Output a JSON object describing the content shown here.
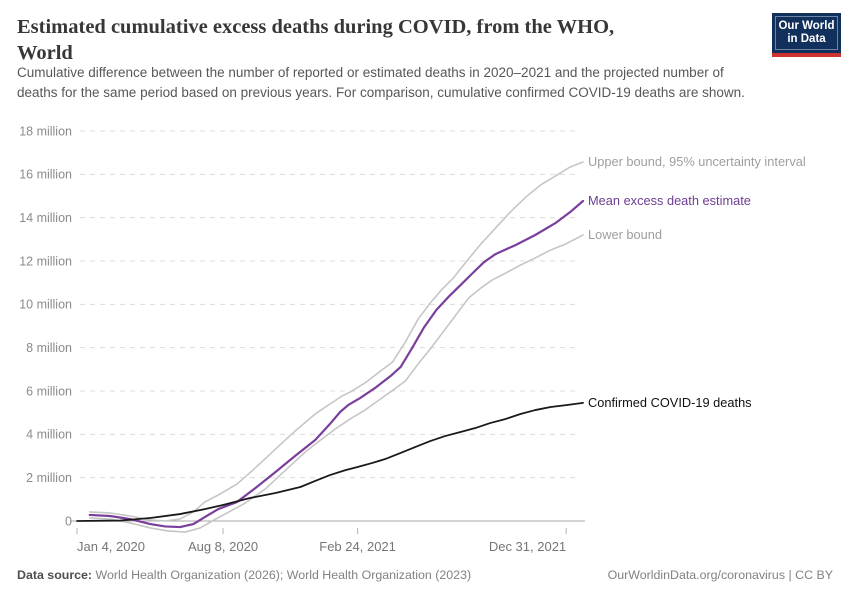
{
  "header": {
    "title_line1": "Estimated cumulative excess deaths during COVID, from the WHO,",
    "title_line2": "World",
    "subtitle_line1": "Cumulative difference between the number of reported or estimated deaths in 2020–2021 and the projected number of",
    "subtitle_line2": "deaths for the same period based on previous years. For comparison, cumulative confirmed COVID-19 deaths are shown.",
    "logo": {
      "line1": "Our World",
      "line2": "in Data",
      "bg_color": "#12305c",
      "stripe_color": "#cf332d"
    }
  },
  "chart_data": {
    "type": "line",
    "title": "Estimated cumulative excess deaths during COVID, from the WHO, World",
    "x_axis": {
      "unit": "days since Jan 4, 2020",
      "range_days": [
        0,
        752
      ],
      "ticks": [
        {
          "day": 0,
          "label": "Jan 4, 2020"
        },
        {
          "day": 217,
          "label": "Aug 8, 2020"
        },
        {
          "day": 417,
          "label": "Feb 24, 2021"
        },
        {
          "day": 727,
          "label": "Dec 31, 2021"
        }
      ]
    },
    "y_axis": {
      "unit": "deaths (millions)",
      "range": [
        0,
        18
      ],
      "ticks": [
        {
          "value": 0,
          "label": "0"
        },
        {
          "value": 2,
          "label": "2 million"
        },
        {
          "value": 4,
          "label": "4 million"
        },
        {
          "value": 6,
          "label": "6 million"
        },
        {
          "value": 8,
          "label": "8 million"
        },
        {
          "value": 10,
          "label": "10 million"
        },
        {
          "value": 12,
          "label": "12 million"
        },
        {
          "value": 14,
          "label": "14 million"
        },
        {
          "value": 16,
          "label": "16 million"
        },
        {
          "value": 18,
          "label": "18 million"
        }
      ],
      "grid": "dashed"
    },
    "legend_position": "right-of-line-ends",
    "series": [
      {
        "id": "upper-bound",
        "name": "Upper bound, 95% uncertainty interval",
        "color": "#c6c6c6",
        "label_color": "#9e9e9e",
        "width": 1.6,
        "points": [
          [
            19,
            0.42
          ],
          [
            49,
            0.37
          ],
          [
            79,
            0.23
          ],
          [
            109,
            0.05
          ],
          [
            131,
            0.0
          ],
          [
            153,
            0.09
          ],
          [
            173,
            0.42
          ],
          [
            190,
            0.88
          ],
          [
            210,
            1.2
          ],
          [
            238,
            1.71
          ],
          [
            265,
            2.45
          ],
          [
            295,
            3.32
          ],
          [
            324,
            4.15
          ],
          [
            354,
            4.94
          ],
          [
            376,
            5.4
          ],
          [
            394,
            5.77
          ],
          [
            406,
            5.95
          ],
          [
            428,
            6.37
          ],
          [
            451,
            6.92
          ],
          [
            469,
            7.34
          ],
          [
            488,
            8.26
          ],
          [
            507,
            9.32
          ],
          [
            525,
            10.06
          ],
          [
            543,
            10.71
          ],
          [
            558,
            11.17
          ],
          [
            577,
            11.91
          ],
          [
            600,
            12.78
          ],
          [
            622,
            13.52
          ],
          [
            644,
            14.26
          ],
          [
            667,
            14.95
          ],
          [
            689,
            15.51
          ],
          [
            711,
            15.92
          ],
          [
            733,
            16.34
          ],
          [
            752,
            16.57
          ]
        ]
      },
      {
        "id": "mean-excess",
        "name": "Mean excess death estimate",
        "color": "#7a3e9c",
        "label_color": "#6d3e91",
        "width": 2.2,
        "points": [
          [
            19,
            0.28
          ],
          [
            49,
            0.23
          ],
          [
            79,
            0.09
          ],
          [
            109,
            -0.14
          ],
          [
            131,
            -0.25
          ],
          [
            153,
            -0.28
          ],
          [
            173,
            -0.14
          ],
          [
            190,
            0.18
          ],
          [
            210,
            0.55
          ],
          [
            238,
            0.88
          ],
          [
            265,
            1.52
          ],
          [
            295,
            2.26
          ],
          [
            324,
            3.0
          ],
          [
            354,
            3.74
          ],
          [
            376,
            4.48
          ],
          [
            391,
            5.03
          ],
          [
            403,
            5.35
          ],
          [
            421,
            5.68
          ],
          [
            443,
            6.14
          ],
          [
            466,
            6.69
          ],
          [
            481,
            7.11
          ],
          [
            498,
            7.98
          ],
          [
            516,
            8.95
          ],
          [
            534,
            9.74
          ],
          [
            552,
            10.34
          ],
          [
            570,
            10.89
          ],
          [
            588,
            11.44
          ],
          [
            605,
            11.95
          ],
          [
            622,
            12.32
          ],
          [
            652,
            12.74
          ],
          [
            681,
            13.2
          ],
          [
            711,
            13.75
          ],
          [
            733,
            14.26
          ],
          [
            752,
            14.77
          ]
        ]
      },
      {
        "id": "lower-bound",
        "name": "Lower bound",
        "color": "#c6c6c6",
        "label_color": "#9e9e9e",
        "width": 1.6,
        "points": [
          [
            19,
            0.14
          ],
          [
            49,
            0.09
          ],
          [
            79,
            -0.09
          ],
          [
            109,
            -0.32
          ],
          [
            135,
            -0.46
          ],
          [
            161,
            -0.51
          ],
          [
            183,
            -0.32
          ],
          [
            201,
            0.0
          ],
          [
            220,
            0.32
          ],
          [
            250,
            0.83
          ],
          [
            280,
            1.48
          ],
          [
            310,
            2.35
          ],
          [
            339,
            3.18
          ],
          [
            362,
            3.74
          ],
          [
            384,
            4.25
          ],
          [
            406,
            4.71
          ],
          [
            428,
            5.12
          ],
          [
            451,
            5.63
          ],
          [
            470,
            6.05
          ],
          [
            488,
            6.46
          ],
          [
            507,
            7.25
          ],
          [
            525,
            7.94
          ],
          [
            543,
            8.68
          ],
          [
            562,
            9.46
          ],
          [
            582,
            10.29
          ],
          [
            600,
            10.75
          ],
          [
            617,
            11.12
          ],
          [
            637,
            11.44
          ],
          [
            659,
            11.81
          ],
          [
            681,
            12.14
          ],
          [
            704,
            12.51
          ],
          [
            726,
            12.78
          ],
          [
            752,
            13.2
          ]
        ]
      },
      {
        "id": "confirmed-deaths",
        "name": "Confirmed COVID-19 deaths",
        "color": "#191919",
        "label_color": "#111111",
        "width": 1.8,
        "points": [
          [
            0,
            0.0
          ],
          [
            64,
            0.02
          ],
          [
            109,
            0.14
          ],
          [
            153,
            0.32
          ],
          [
            190,
            0.55
          ],
          [
            217,
            0.74
          ],
          [
            257,
            1.06
          ],
          [
            295,
            1.29
          ],
          [
            332,
            1.57
          ],
          [
            354,
            1.85
          ],
          [
            376,
            2.12
          ],
          [
            399,
            2.35
          ],
          [
            417,
            2.49
          ],
          [
            439,
            2.68
          ],
          [
            458,
            2.86
          ],
          [
            481,
            3.14
          ],
          [
            503,
            3.42
          ],
          [
            525,
            3.69
          ],
          [
            547,
            3.92
          ],
          [
            570,
            4.11
          ],
          [
            592,
            4.29
          ],
          [
            614,
            4.52
          ],
          [
            637,
            4.71
          ],
          [
            659,
            4.94
          ],
          [
            681,
            5.12
          ],
          [
            704,
            5.26
          ],
          [
            727,
            5.35
          ],
          [
            752,
            5.45
          ]
        ]
      }
    ],
    "colors": {
      "gridline": "#dcdcdc",
      "zero_axis": "#a8a8a8",
      "tick_mark": "#b5b5b5",
      "y_tick_label": "#8b8b8b",
      "x_tick_label": "#757575"
    }
  },
  "footer": {
    "data_source_label": "Data source:",
    "data_source_value": " World Health Organization (2026); World Health Organization (2023)",
    "attribution": "OurWorldinData.org/coronavirus | CC BY"
  }
}
